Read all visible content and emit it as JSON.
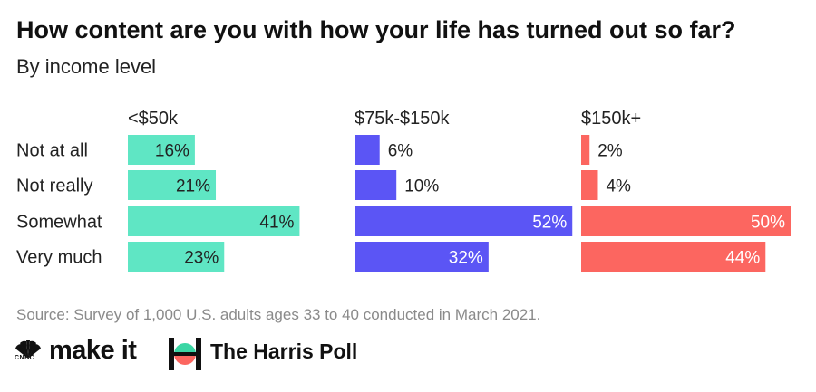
{
  "header": {
    "title": "How content are you with how your life has turned out so far?",
    "subtitle": "By income level"
  },
  "chart_data": {
    "type": "bar",
    "orientation": "horizontal",
    "title": "How content are you with how your life has turned out so far?",
    "subtitle": "By income level",
    "categories": [
      "Not at all",
      "Not really",
      "Somewhat",
      "Very much"
    ],
    "unit": "%",
    "xlim": [
      0,
      60
    ],
    "series": [
      {
        "name": "<$50k",
        "color": "#5fe6c4",
        "values": [
          16,
          21,
          41,
          23
        ]
      },
      {
        "name": "$75k-$150k",
        "color": "#5b55f5",
        "values": [
          6,
          10,
          52,
          32
        ]
      },
      {
        "name": "$150k+",
        "color": "#fc6660",
        "values": [
          2,
          4,
          50,
          44
        ]
      }
    ]
  },
  "footer": {
    "source": "Source: Survey of 1,000 U.S. adults ages 33 to 40 conducted in March 2021.",
    "logo_cnbc_text": "CNBC",
    "logo_makeit": "make it",
    "logo_harris": "The Harris Poll"
  }
}
